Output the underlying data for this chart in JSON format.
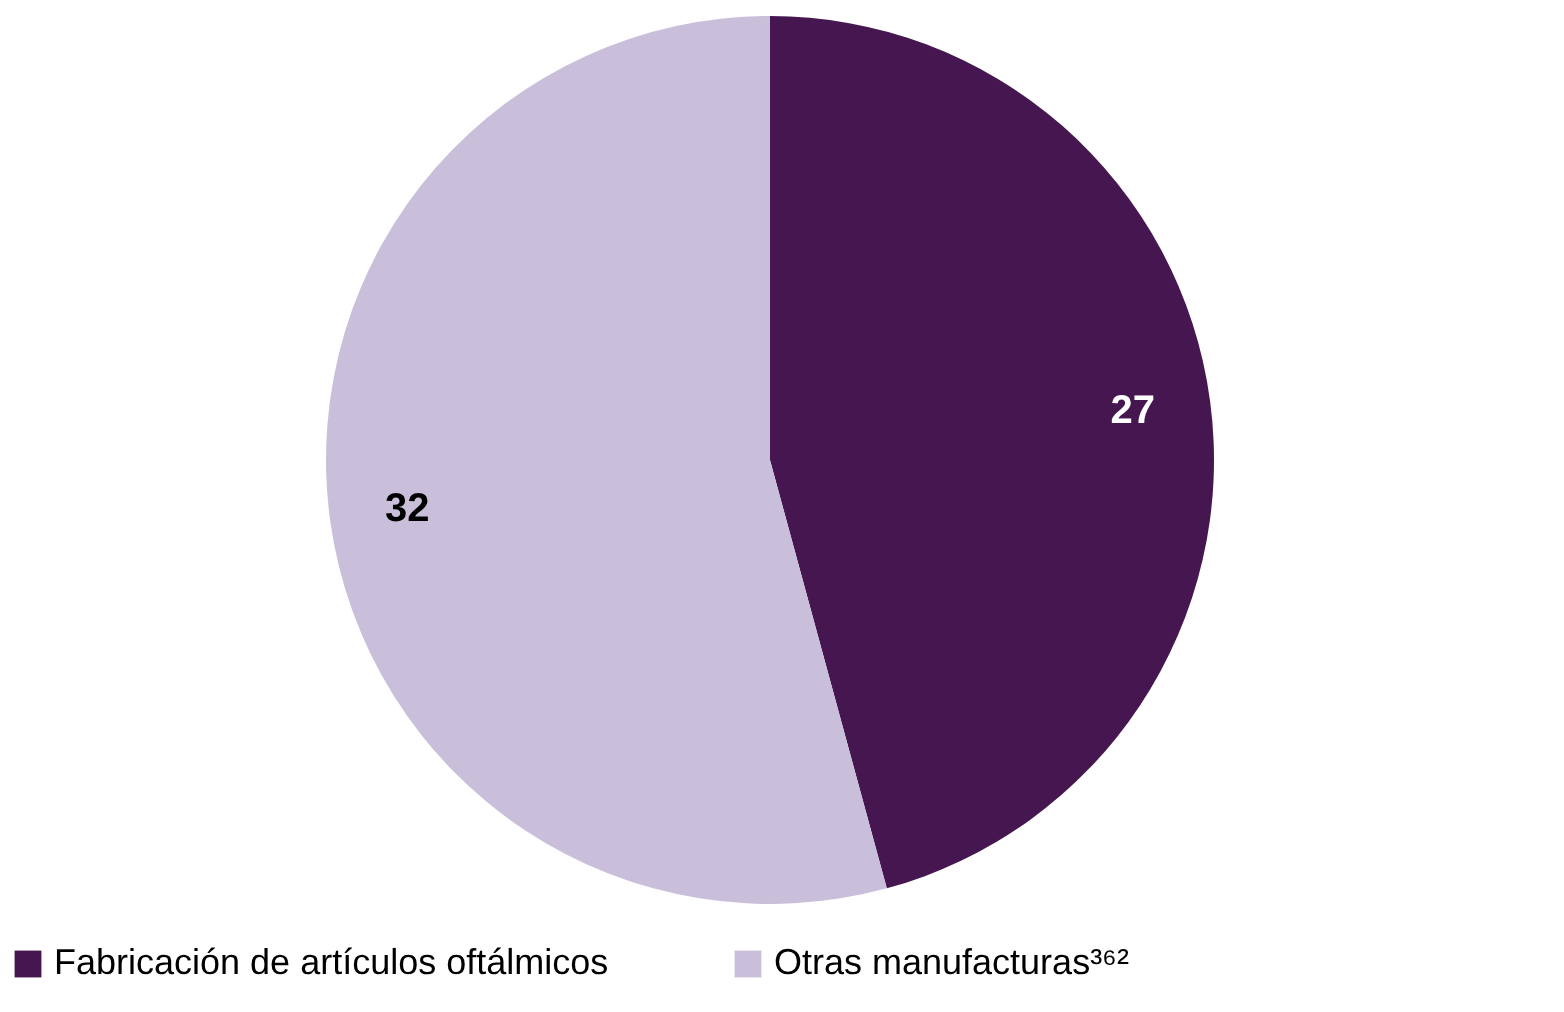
{
  "chart_data": {
    "type": "pie",
    "categories": [
      "Fabricación de artículos oftálmicos",
      "Otras manufacturas³⁶²"
    ],
    "values": [
      27,
      32
    ],
    "colors": [
      "#45164f",
      "#c9bfdb"
    ],
    "data_labels": true,
    "legend": "bottom"
  }
}
